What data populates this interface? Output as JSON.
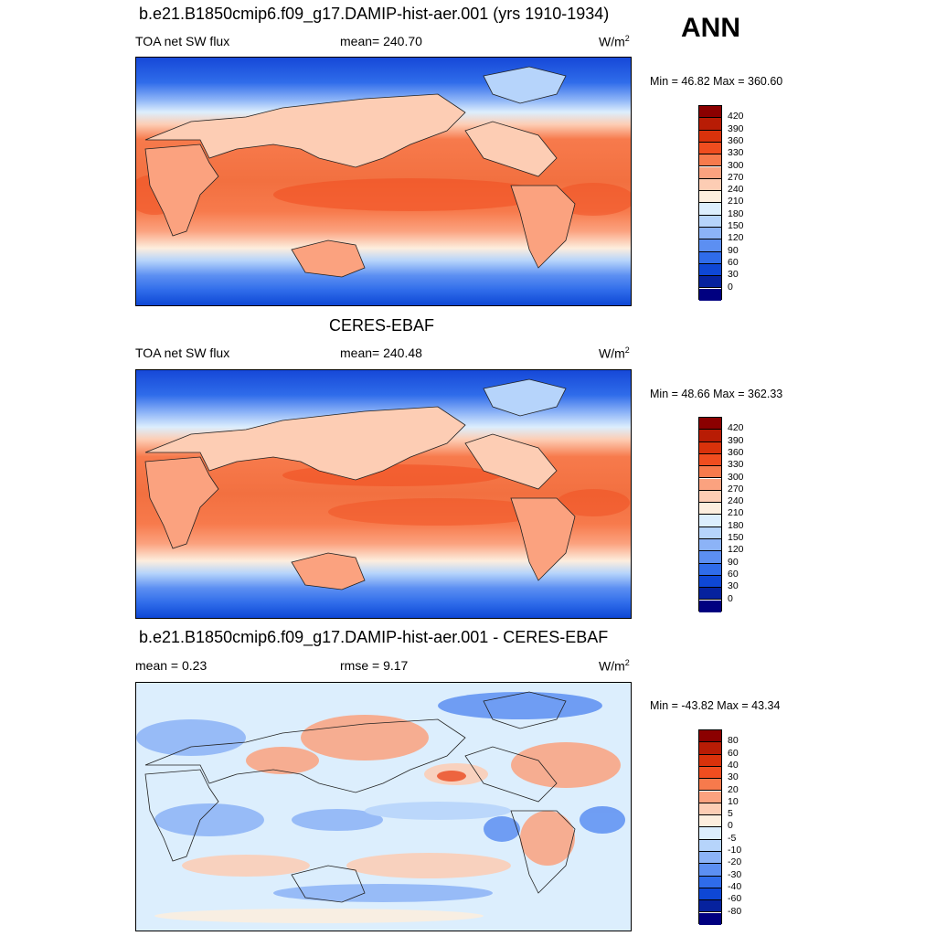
{
  "season": "ANN",
  "panels": [
    {
      "title": "b.e21.B1850cmip6.f09_g17.DAMIP-hist-aer.001 (yrs 1910-1934)",
      "left_label": "TOA net SW flux",
      "center_label": "mean= 240.70",
      "units": "W/m",
      "units_sup": "2",
      "minmax": "Min =  46.82 Max = 360.60",
      "colorbar_labels": [
        "420",
        "390",
        "360",
        "330",
        "300",
        "270",
        "240",
        "210",
        "180",
        "150",
        "120",
        "90",
        "60",
        "30",
        "0"
      ]
    },
    {
      "title": "CERES-EBAF",
      "left_label": "TOA net SW flux",
      "center_label": "mean= 240.48",
      "units": "W/m",
      "units_sup": "2",
      "minmax": "Min =  48.66 Max = 362.33",
      "colorbar_labels": [
        "420",
        "390",
        "360",
        "330",
        "300",
        "270",
        "240",
        "210",
        "180",
        "150",
        "120",
        "90",
        "60",
        "30",
        "0"
      ]
    },
    {
      "title": "b.e21.B1850cmip6.f09_g17.DAMIP-hist-aer.001 - CERES-EBAF",
      "left_label": "mean =   0.23",
      "center_label": "rmse =   9.17",
      "units": "W/m",
      "units_sup": "2",
      "minmax": "Min = -43.82 Max =  43.34",
      "colorbar_labels": [
        "80",
        "60",
        "40",
        "30",
        "20",
        "10",
        "5",
        "0",
        "-5",
        "-10",
        "-20",
        "-30",
        "-40",
        "-60",
        "-80"
      ]
    }
  ],
  "colors": {
    "abs_scale": [
      "#8b0000",
      "#b81c05",
      "#d9320b",
      "#f04d1f",
      "#f77a4c",
      "#fba27f",
      "#fdcdb4",
      "#fdeede",
      "#dceefd",
      "#b6d4fb",
      "#8cb3f7",
      "#5c8ff2",
      "#2f6cea",
      "#0e47d5",
      "#06229e",
      "#000080"
    ],
    "diff_scale": [
      "#8b0000",
      "#b81c05",
      "#d9320b",
      "#f04d1f",
      "#f77a4c",
      "#fba27f",
      "#fdcdb4",
      "#fdeede",
      "#dceefd",
      "#b6d4fb",
      "#8cb3f7",
      "#5c8ff2",
      "#2f6cea",
      "#0e47d5",
      "#06229e",
      "#000080"
    ]
  }
}
